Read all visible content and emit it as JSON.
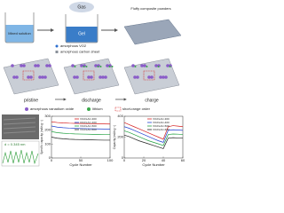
{
  "diagram": {
    "synthesis": {
      "beaker1": "Mixed solution",
      "gas": "Gas",
      "beaker2": "Gel",
      "product": "Fluffy composite powders",
      "key1": "amorphous VO2",
      "key2": "amorphous carbon sheet"
    },
    "states": [
      "pristine",
      "discharge",
      "charge"
    ],
    "legend": [
      "amorphous vanadium oxide",
      "lithium",
      "short-range order"
    ],
    "tem_label": "d = 0.345 nm"
  },
  "chart_data": [
    {
      "type": "line",
      "xlabel": "Cycle Number",
      "ylabel": "Specific capacity (mAh g⁻¹)",
      "x": [
        0,
        10,
        20,
        30,
        40,
        50,
        60,
        70,
        80,
        90,
        100
      ],
      "xlim": [
        0,
        100
      ],
      "xticks": [
        0,
        50,
        100
      ],
      "ylim": [
        0,
        300
      ],
      "yticks": [
        0,
        100,
        200,
        300
      ],
      "series": [
        {
          "name": "VO2/LAC-300",
          "color": "#d62020",
          "values": [
            260,
            255,
            252,
            250,
            249,
            248,
            247,
            246,
            245,
            245,
            244
          ]
        },
        {
          "name": "VO2/LAC-400",
          "color": "#2040d0",
          "values": [
            230,
            222,
            218,
            215,
            213,
            212,
            211,
            210,
            209,
            208,
            208
          ]
        },
        {
          "name": "VO2/LAC-500",
          "color": "#20a040",
          "values": [
            190,
            182,
            178,
            175,
            173,
            172,
            171,
            170,
            169,
            168,
            168
          ]
        },
        {
          "name": "VO2/LAC-600",
          "color": "#222222",
          "values": [
            150,
            142,
            138,
            135,
            133,
            132,
            131,
            130,
            129,
            128,
            128
          ]
        }
      ]
    },
    {
      "type": "line",
      "xlabel": "Cycle Number",
      "ylabel": "Capacity (mAh g⁻¹)",
      "x": [
        0,
        5,
        10,
        15,
        20,
        25,
        30,
        35,
        40,
        45,
        50,
        55,
        60
      ],
      "xlim": [
        0,
        60
      ],
      "xticks": [
        0,
        20,
        40,
        60
      ],
      "ylim": [
        0,
        400
      ],
      "yticks": [
        0,
        200,
        400
      ],
      "series": [
        {
          "name": "VO2/LAC-300",
          "color": "#d62020",
          "values": [
            340,
            320,
            300,
            280,
            260,
            240,
            220,
            200,
            180,
            300,
            310,
            305,
            300
          ]
        },
        {
          "name": "VO2/LAC-400",
          "color": "#2040d0",
          "values": [
            300,
            285,
            265,
            245,
            225,
            205,
            185,
            165,
            150,
            265,
            270,
            268,
            265
          ]
        },
        {
          "name": "VO2/LAC-500",
          "color": "#20a040",
          "values": [
            260,
            245,
            225,
            205,
            185,
            165,
            150,
            135,
            120,
            225,
            230,
            228,
            225
          ]
        },
        {
          "name": "VO2/LAC-600",
          "color": "#222222",
          "values": [
            220,
            205,
            185,
            165,
            150,
            135,
            120,
            105,
            90,
            190,
            195,
            192,
            190
          ]
        }
      ]
    }
  ]
}
